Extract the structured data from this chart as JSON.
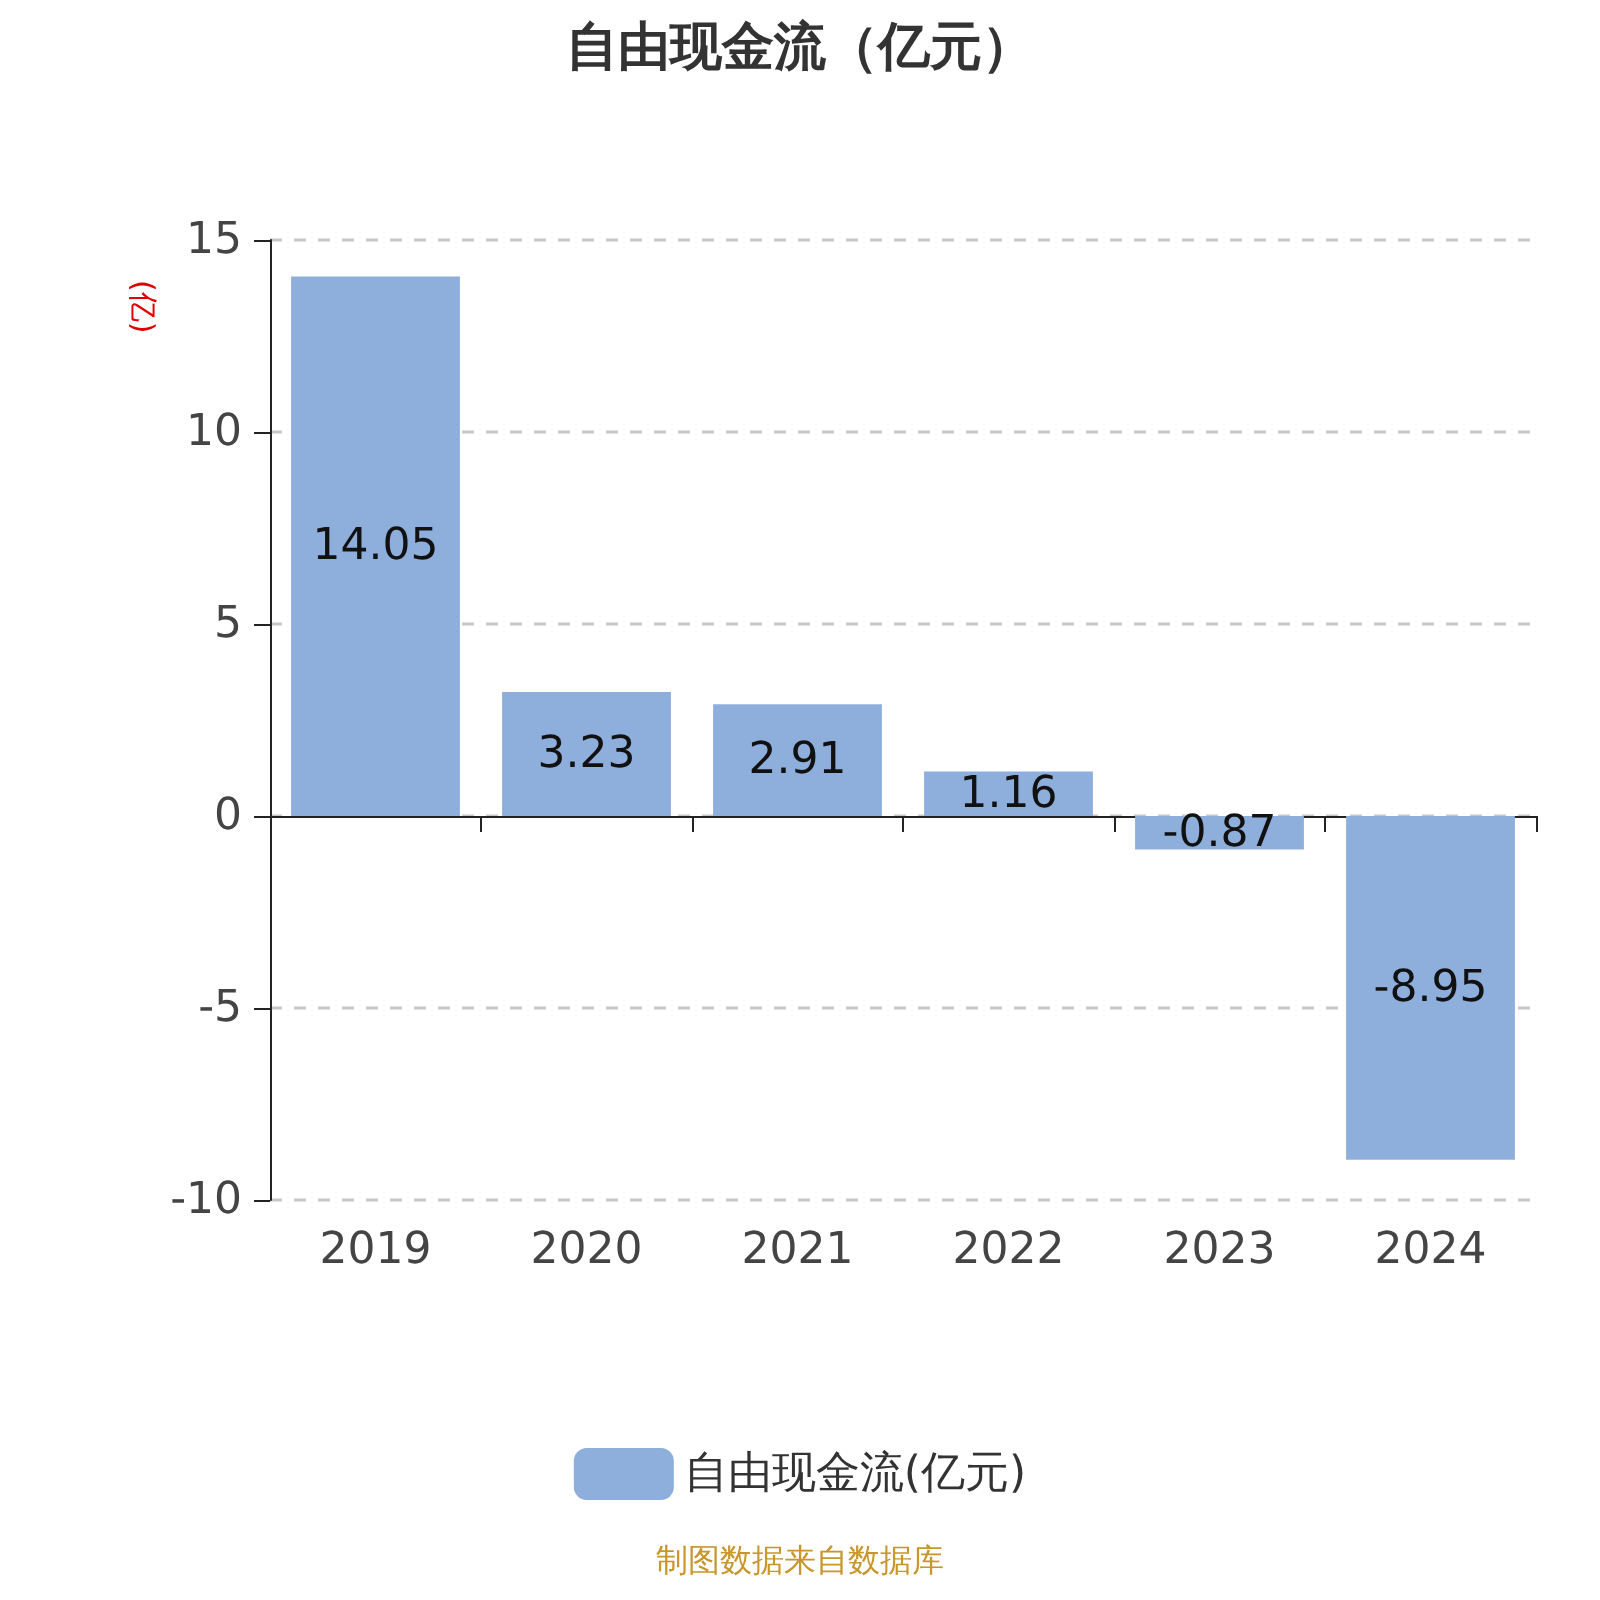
{
  "chart_data": {
    "type": "bar",
    "title": "自由现金流（亿元）",
    "ylabel": "(亿)",
    "categories": [
      "2019",
      "2020",
      "2021",
      "2022",
      "2023",
      "2024"
    ],
    "series": [
      {
        "name": "自由现金流(亿元)",
        "color": "#8eaedb",
        "values": [
          14.05,
          3.23,
          2.91,
          1.16,
          -0.87,
          -8.95
        ]
      }
    ],
    "ylim": [
      -10,
      15
    ],
    "yticks": [
      -10,
      -5,
      0,
      5,
      10,
      15
    ],
    "grid": "y",
    "legend": "bottom",
    "data_labels": true,
    "annotations": [
      "制图数据来自数据库"
    ]
  }
}
